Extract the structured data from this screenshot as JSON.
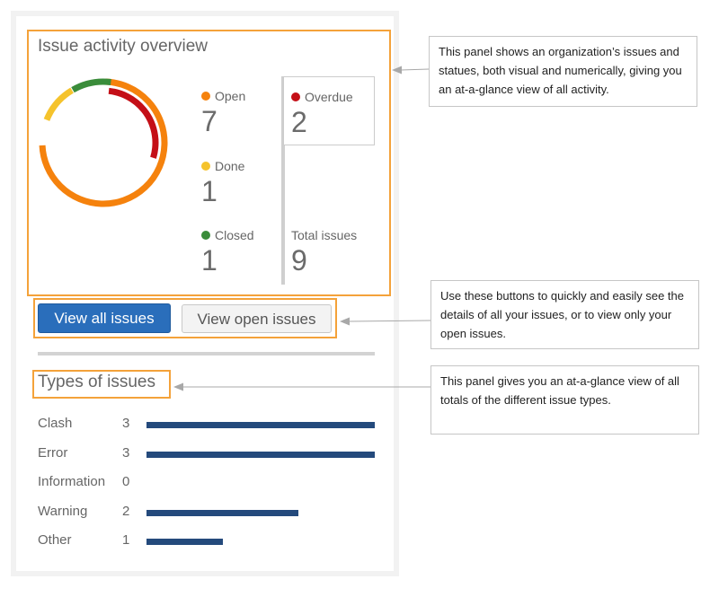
{
  "overview": {
    "title": "Issue activity overview",
    "stats": {
      "open": {
        "label": "Open",
        "value": "7",
        "color": "#f5820d"
      },
      "done": {
        "label": "Done",
        "value": "1",
        "color": "#f5c32c"
      },
      "closed": {
        "label": "Closed",
        "value": "1",
        "color": "#3a8c3a"
      },
      "overdue": {
        "label": "Overdue",
        "value": "2",
        "color": "#c40f17"
      },
      "total": {
        "label": "Total issues",
        "value": "9"
      }
    }
  },
  "buttons": {
    "view_all": "View all issues",
    "view_open": "View open issues"
  },
  "types": {
    "title": "Types of issues",
    "bar_color": "#244a7c",
    "max_value": 3,
    "items": [
      {
        "name": "Clash",
        "count": "3",
        "value": 3
      },
      {
        "name": "Error",
        "count": "3",
        "value": 3
      },
      {
        "name": "Information",
        "count": "0",
        "value": 0
      },
      {
        "name": "Warning",
        "count": "2",
        "value": 2
      },
      {
        "name": "Other",
        "count": "1",
        "value": 1
      }
    ]
  },
  "callouts": {
    "overview": "This panel shows an organization’s issues and statues, both visual and numerically, giving you an at-a-glance view of all activity.",
    "buttons": "Use these buttons to quickly and easily see the details of all your issues, or to view only your open issues.",
    "types": "This panel gives you an at-a-glance view of all totals of the different issue types."
  }
}
